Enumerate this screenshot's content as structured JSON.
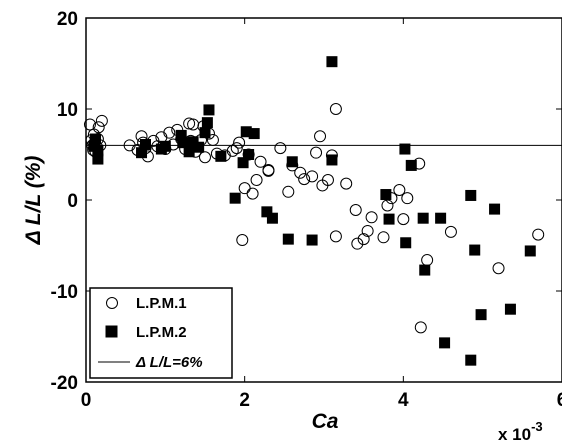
{
  "chart_data": {
    "type": "scatter",
    "xlabel": "Ca",
    "x_multiplier": "x 10",
    "x_multiplier_exp": "-3",
    "ylabel": "Δ L/L (%)",
    "xlim": [
      0,
      6
    ],
    "ylim": [
      -20,
      20
    ],
    "xticks": [
      0,
      2,
      4,
      6
    ],
    "yticks": [
      -20,
      -10,
      0,
      10,
      20
    ],
    "grid": false,
    "legend_placement": "bottom-left",
    "reference_line": {
      "name": "Δ L/L=6%",
      "y": 6
    },
    "series": [
      {
        "name": "L.P.M.1",
        "marker": "open-circle",
        "points": [
          [
            0.05,
            8.3
          ],
          [
            0.07,
            6.6
          ],
          [
            0.08,
            6.0
          ],
          [
            0.09,
            5.5
          ],
          [
            0.1,
            7.2
          ],
          [
            0.11,
            6.3
          ],
          [
            0.12,
            5.3
          ],
          [
            0.14,
            5.8
          ],
          [
            0.15,
            6.7
          ],
          [
            0.16,
            8.0
          ],
          [
            0.18,
            6.0
          ],
          [
            0.2,
            8.7
          ],
          [
            0.55,
            6.0
          ],
          [
            0.65,
            5.5
          ],
          [
            0.7,
            7.0
          ],
          [
            0.72,
            6.3
          ],
          [
            0.75,
            5.7
          ],
          [
            0.78,
            4.8
          ],
          [
            0.85,
            6.5
          ],
          [
            0.9,
            5.9
          ],
          [
            0.95,
            6.9
          ],
          [
            1.0,
            5.6
          ],
          [
            1.05,
            7.4
          ],
          [
            1.1,
            6.1
          ],
          [
            1.15,
            7.7
          ],
          [
            1.2,
            6.7
          ],
          [
            1.25,
            5.6
          ],
          [
            1.3,
            8.4
          ],
          [
            1.32,
            6.5
          ],
          [
            1.35,
            8.3
          ],
          [
            1.38,
            5.3
          ],
          [
            1.45,
            6.6
          ],
          [
            1.48,
            8.1
          ],
          [
            1.5,
            4.7
          ],
          [
            1.55,
            7.3
          ],
          [
            1.6,
            6.6
          ],
          [
            1.65,
            5.1
          ],
          [
            1.75,
            4.9
          ],
          [
            1.85,
            5.4
          ],
          [
            1.9,
            5.7
          ],
          [
            1.93,
            6.3
          ],
          [
            1.97,
            -4.4
          ],
          [
            2.0,
            1.3
          ],
          [
            2.05,
            5.0
          ],
          [
            2.1,
            0.7
          ],
          [
            2.15,
            2.2
          ],
          [
            2.2,
            4.2
          ],
          [
            2.3,
            3.2
          ],
          [
            2.3,
            3.3
          ],
          [
            2.45,
            5.7
          ],
          [
            2.55,
            0.9
          ],
          [
            2.6,
            3.8
          ],
          [
            2.7,
            3.0
          ],
          [
            2.75,
            2.3
          ],
          [
            2.85,
            2.6
          ],
          [
            2.9,
            5.2
          ],
          [
            2.95,
            7.0
          ],
          [
            2.98,
            1.6
          ],
          [
            3.05,
            2.2
          ],
          [
            3.1,
            4.9
          ],
          [
            3.15,
            10.0
          ],
          [
            3.15,
            -4.0
          ],
          [
            3.28,
            1.8
          ],
          [
            3.4,
            -1.1
          ],
          [
            3.42,
            -4.8
          ],
          [
            3.5,
            -4.3
          ],
          [
            3.55,
            -3.4
          ],
          [
            3.6,
            -1.9
          ],
          [
            3.75,
            -4.1
          ],
          [
            3.8,
            -0.6
          ],
          [
            3.85,
            0.2
          ],
          [
            3.95,
            1.1
          ],
          [
            4.0,
            -2.1
          ],
          [
            4.05,
            0.2
          ],
          [
            4.2,
            4.0
          ],
          [
            4.22,
            -14.0
          ],
          [
            4.3,
            -6.6
          ],
          [
            4.6,
            -3.5
          ],
          [
            5.2,
            -7.5
          ],
          [
            5.7,
            -3.8
          ]
        ]
      },
      {
        "name": "L.P.M.2",
        "marker": "filled-square",
        "points": [
          [
            0.1,
            5.9
          ],
          [
            0.12,
            6.7
          ],
          [
            0.15,
            4.5
          ],
          [
            0.15,
            5.4
          ],
          [
            0.7,
            5.2
          ],
          [
            0.75,
            6.1
          ],
          [
            0.95,
            5.6
          ],
          [
            1.0,
            5.9
          ],
          [
            1.2,
            7.1
          ],
          [
            1.22,
            6.3
          ],
          [
            1.3,
            5.3
          ],
          [
            1.35,
            6.4
          ],
          [
            1.42,
            5.8
          ],
          [
            1.5,
            7.4
          ],
          [
            1.53,
            8.5
          ],
          [
            1.55,
            9.9
          ],
          [
            1.7,
            4.8
          ],
          [
            1.88,
            0.2
          ],
          [
            1.98,
            4.1
          ],
          [
            2.02,
            7.5
          ],
          [
            2.05,
            5.0
          ],
          [
            2.12,
            7.3
          ],
          [
            2.28,
            -1.3
          ],
          [
            2.35,
            -2.0
          ],
          [
            2.55,
            -4.3
          ],
          [
            2.6,
            4.2
          ],
          [
            2.85,
            -4.4
          ],
          [
            3.1,
            15.2
          ],
          [
            3.1,
            4.4
          ],
          [
            3.78,
            0.6
          ],
          [
            3.82,
            -2.1
          ],
          [
            4.02,
            5.6
          ],
          [
            4.03,
            -4.7
          ],
          [
            4.1,
            3.8
          ],
          [
            4.25,
            -2.0
          ],
          [
            4.27,
            -7.7
          ],
          [
            4.47,
            -2.0
          ],
          [
            4.52,
            -15.7
          ],
          [
            4.85,
            0.5
          ],
          [
            4.85,
            -17.6
          ],
          [
            4.9,
            -5.5
          ],
          [
            4.98,
            -12.6
          ],
          [
            5.15,
            -1.0
          ],
          [
            5.35,
            -12.0
          ],
          [
            5.6,
            -5.6
          ]
        ]
      }
    ]
  }
}
